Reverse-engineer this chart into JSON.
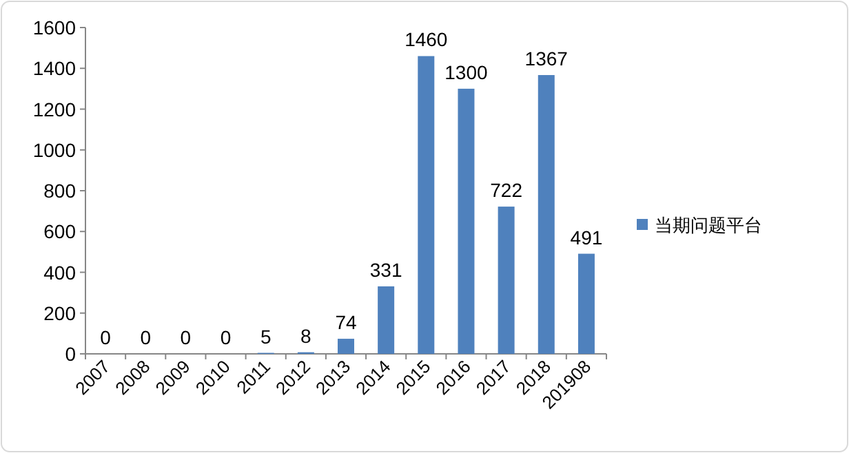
{
  "chart_data": {
    "type": "bar",
    "categories": [
      "2007",
      "2008",
      "2009",
      "2010",
      "2011",
      "2012",
      "2013",
      "2014",
      "2015",
      "2016",
      "2017",
      "2018",
      "201908"
    ],
    "series": [
      {
        "name": "当期问题平台",
        "color": "#4f81bd",
        "values": [
          0,
          0,
          0,
          0,
          5,
          8,
          74,
          331,
          1460,
          1300,
          722,
          1367,
          491
        ]
      }
    ],
    "ylim": [
      0,
      1600
    ],
    "yticks": [
      0,
      200,
      400,
      600,
      800,
      1000,
      1200,
      1400,
      1600
    ],
    "data_labels": true,
    "legend": "right",
    "grid": false
  }
}
